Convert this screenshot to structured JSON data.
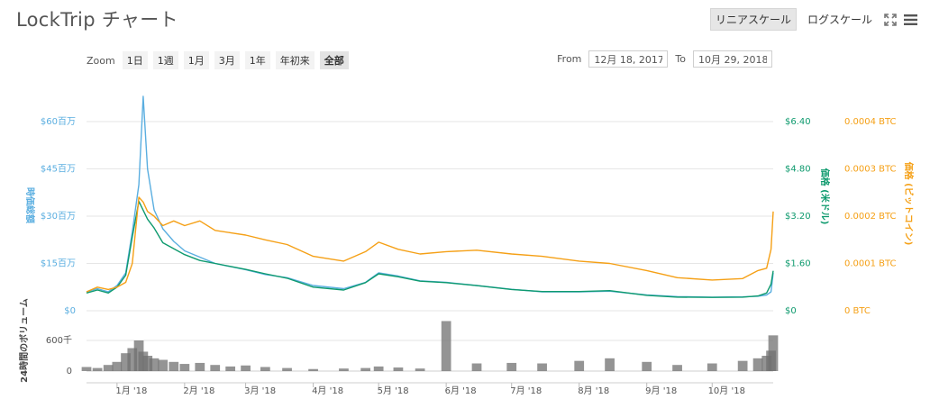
{
  "title": "LockTrip チャート",
  "toolbar": {
    "linear": "リニアスケール",
    "log": "ログスケール",
    "fullscreen_icon": "fullscreen-icon",
    "menu_icon": "menu-icon"
  },
  "zoom": {
    "label": "Zoom",
    "buttons": [
      "1日",
      "1週",
      "1月",
      "3月",
      "1年",
      "年初来",
      "全部"
    ],
    "active": "全部"
  },
  "range": {
    "from_label": "From",
    "from": "12月 18, 2017",
    "to_label": "To",
    "to": "10月 29, 2018"
  },
  "colors": {
    "market_cap": "#5aaee0",
    "usd": "#0e9a6e",
    "btc": "#f5a016",
    "volume": "#707070",
    "grid": "#e6e6e6"
  },
  "chart_data": {
    "type": "line",
    "x_ticks": [
      "1月 '18",
      "2月 '18",
      "3月 '18",
      "4月 '18",
      "5月 '18",
      "6月 '18",
      "7月 '18",
      "8月 '18",
      "9月 '18",
      "10月 '18"
    ],
    "x_dates": [
      "2017-12-18",
      "2017-12-23",
      "2017-12-28",
      "2018-01-01",
      "2018-01-05",
      "2018-01-08",
      "2018-01-11",
      "2018-01-13",
      "2018-01-15",
      "2018-01-18",
      "2018-01-22",
      "2018-01-27",
      "2018-02-01",
      "2018-02-08",
      "2018-02-15",
      "2018-02-22",
      "2018-03-01",
      "2018-03-10",
      "2018-03-20",
      "2018-04-01",
      "2018-04-15",
      "2018-04-25",
      "2018-05-01",
      "2018-05-10",
      "2018-05-20",
      "2018-06-01",
      "2018-06-15",
      "2018-07-01",
      "2018-07-15",
      "2018-08-01",
      "2018-08-15",
      "2018-09-01",
      "2018-09-15",
      "2018-10-01",
      "2018-10-15",
      "2018-10-22",
      "2018-10-26",
      "2018-10-28",
      "2018-10-29"
    ],
    "axes": {
      "market_cap": {
        "label": "時価総額",
        "ticks": [
          "$0",
          "$15百万",
          "$30百万",
          "$45百万",
          "$60百万"
        ],
        "range": [
          0,
          60
        ]
      },
      "usd": {
        "label": "価格 (米ドル)",
        "ticks": [
          "$0",
          "$1.60",
          "$3.20",
          "$4.80",
          "$6.40"
        ],
        "range": [
          0,
          6.4
        ]
      },
      "btc": {
        "label": "価格 (ビットコイン)",
        "ticks": [
          "0 BTC",
          "0.0001 BTC",
          "0.0002 BTC",
          "0.0003 BTC",
          "0.0004 BTC"
        ],
        "range": [
          0,
          0.0004
        ]
      },
      "volume": {
        "label": "24時間のボリューム",
        "ticks": [
          "0",
          "600千"
        ],
        "range": [
          0,
          600
        ]
      }
    },
    "series": [
      {
        "name": "時価総額",
        "axis": "market_cap",
        "values": [
          6,
          7,
          6,
          8,
          12,
          25,
          40,
          68,
          45,
          32,
          26,
          22,
          19,
          17,
          15,
          14,
          13,
          11.5,
          10.5,
          8,
          7,
          9,
          12,
          11,
          9.5,
          9,
          8,
          6.8,
          6,
          6,
          6.2,
          5,
          4.5,
          4.3,
          4.4,
          4.6,
          5,
          6,
          12
        ]
      },
      {
        "name": "価格 (米ドル)",
        "axis": "usd",
        "values": [
          0.6,
          0.7,
          0.6,
          0.8,
          1.2,
          2.5,
          3.7,
          3.4,
          3.1,
          2.8,
          2.3,
          2.1,
          1.9,
          1.7,
          1.6,
          1.5,
          1.4,
          1.25,
          1.1,
          0.8,
          0.7,
          0.95,
          1.25,
          1.15,
          1,
          0.95,
          0.85,
          0.72,
          0.65,
          0.65,
          0.68,
          0.52,
          0.46,
          0.45,
          0.46,
          0.5,
          0.6,
          0.9,
          1.35
        ]
      },
      {
        "name": "価格 (ビットコイン)",
        "axis": "btc",
        "values": [
          4e-05,
          5e-05,
          4.5e-05,
          5e-05,
          6e-05,
          0.0001,
          0.00024,
          0.00023,
          0.00021,
          0.0002,
          0.00018,
          0.00019,
          0.00018,
          0.00019,
          0.00017,
          0.000165,
          0.00016,
          0.00015,
          0.00014,
          0.000115,
          0.000105,
          0.000125,
          0.000145,
          0.00013,
          0.00012,
          0.000125,
          0.000128,
          0.00012,
          0.000115,
          0.000105,
          0.0001,
          8.5e-05,
          7e-05,
          6.5e-05,
          6.8e-05,
          8.5e-05,
          9e-05,
          0.00013,
          0.00021
        ]
      },
      {
        "name": "24時間のボリューム",
        "axis": "volume",
        "values": [
          80,
          60,
          120,
          180,
          350,
          450,
          600,
          380,
          300,
          250,
          220,
          180,
          140,
          160,
          120,
          90,
          110,
          80,
          60,
          40,
          50,
          60,
          90,
          70,
          50,
          980,
          150,
          160,
          150,
          200,
          250,
          180,
          120,
          150,
          200,
          250,
          300,
          400,
          700
        ]
      }
    ]
  }
}
